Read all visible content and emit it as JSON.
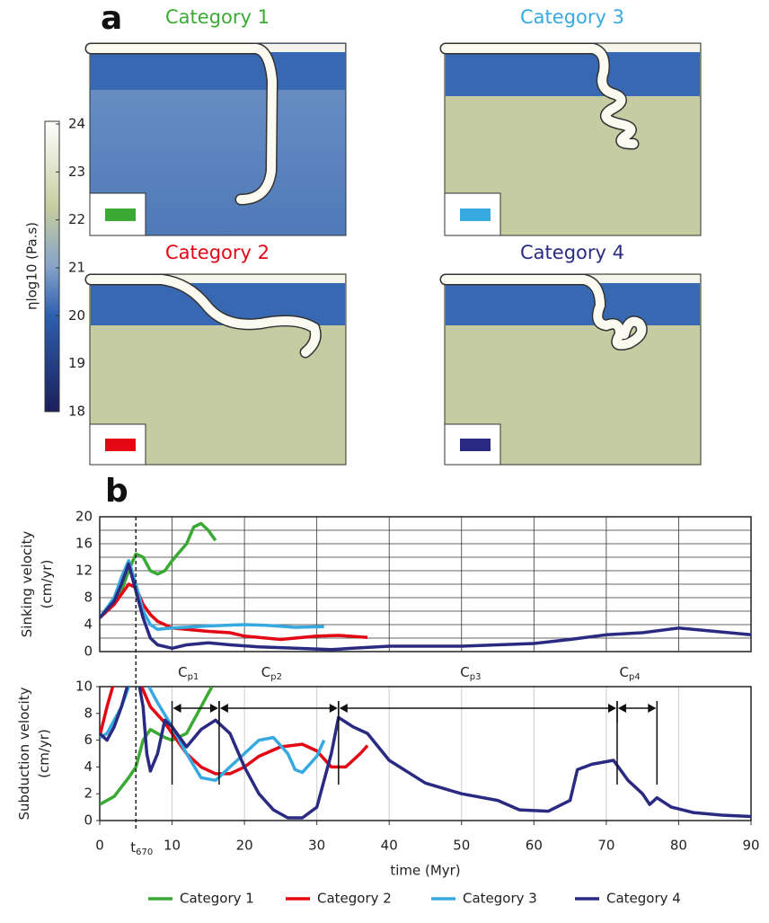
{
  "panel_a": {
    "label": "a",
    "panels": [
      {
        "title": "Category 1",
        "color": "#3aaa35"
      },
      {
        "title": "Category 3",
        "color": "#36a9e1"
      },
      {
        "title": "Category 2",
        "color": "#e30613"
      },
      {
        "title": "Category 4",
        "color": "#2b2a83"
      }
    ],
    "colorbar": {
      "label": "ηlog10 (Pa.s)",
      "lim": [
        18,
        24
      ],
      "ticks": [
        18,
        19,
        20,
        21,
        22,
        23,
        24
      ]
    }
  },
  "panel_b": {
    "label": "b"
  },
  "chart_data": [
    {
      "type": "line",
      "ylabel": [
        "Sinking velocity",
        "(cm/yr)"
      ],
      "xlim": [
        0,
        90
      ],
      "xticks": [
        0,
        10,
        20,
        30,
        40,
        50,
        60,
        70,
        80,
        90
      ],
      "ylim": [
        0,
        20
      ],
      "yticks": [
        0,
        4,
        8,
        12,
        16,
        20
      ],
      "yminor": [
        2,
        6,
        10,
        14,
        18
      ],
      "grid": true,
      "series": [
        {
          "color": "#3aaa35",
          "x": [
            0,
            3,
            4,
            5,
            6,
            7,
            8,
            9,
            10,
            12,
            13,
            14,
            15,
            16
          ],
          "values": [
            5,
            9,
            12,
            14.5,
            14,
            12,
            11.5,
            12,
            13.5,
            16,
            18.5,
            19,
            18,
            16.5
          ]
        },
        {
          "color": "#e30613",
          "x": [
            0,
            2,
            4,
            5,
            6,
            7,
            8,
            10,
            15,
            18,
            20,
            25,
            30,
            33,
            37
          ],
          "values": [
            5,
            7,
            10,
            9.5,
            7,
            5.5,
            4.5,
            3.5,
            3,
            2.8,
            2.3,
            1.8,
            2.3,
            2.4,
            2.1
          ]
        },
        {
          "color": "#36a9e1",
          "x": [
            0,
            2,
            3,
            4,
            5,
            6,
            7,
            8,
            10,
            15,
            20,
            23,
            27,
            31
          ],
          "values": [
            5,
            8,
            11,
            13.5,
            10,
            6,
            4,
            3.3,
            3.5,
            3.8,
            4,
            3.9,
            3.6,
            3.7
          ]
        },
        {
          "color": "#2b2a83",
          "x": [
            0,
            2,
            3,
            4,
            5,
            6,
            7,
            8,
            10,
            12,
            15,
            18,
            22,
            27,
            32,
            35,
            40,
            50,
            60,
            65,
            70,
            75,
            80,
            85,
            90
          ],
          "values": [
            5,
            7.5,
            10,
            13,
            9,
            5,
            2,
            1,
            0.5,
            1,
            1.3,
            1,
            0.7,
            0.5,
            0.3,
            0.5,
            0.8,
            0.8,
            1.2,
            1.8,
            2.5,
            2.8,
            3.5,
            3,
            2.5
          ]
        }
      ]
    },
    {
      "type": "line",
      "ylabel": [
        "Subduction velocity",
        "(cm/yr)"
      ],
      "xlabel": "time (Myr)",
      "xlim": [
        0,
        90
      ],
      "xticks": [
        0,
        10,
        20,
        30,
        40,
        50,
        60,
        70,
        80,
        90
      ],
      "ylim": [
        0,
        10
      ],
      "yticks": [
        0,
        2,
        4,
        6,
        8,
        10
      ],
      "grid": true,
      "annotations": {
        "t670": {
          "text": "t",
          "sub": "670",
          "x": 5
        },
        "phases": [
          {
            "text": "C",
            "sub": "p1",
            "from": 10,
            "to": 16.5
          },
          {
            "text": "C",
            "sub": "p2",
            "from": 16.5,
            "to": 33
          },
          {
            "text": "C",
            "sub": "p3",
            "from": 33,
            "to": 71.5
          },
          {
            "text": "C",
            "sub": "p4",
            "from": 71.5,
            "to": 77
          }
        ]
      },
      "series": [
        {
          "name": "Category 1",
          "color": "#3aaa35",
          "x": [
            0,
            2,
            4,
            5,
            6,
            7,
            9,
            10,
            12,
            14,
            15.5
          ],
          "values": [
            1.2,
            1.8,
            3.2,
            4,
            6,
            6.8,
            6.2,
            6,
            6.5,
            8.5,
            10
          ]
        },
        {
          "name": "Category 2",
          "color": "#e30613",
          "x": [
            0,
            1,
            1.8,
            3,
            5.8,
            7,
            9,
            10,
            12,
            14,
            16,
            18,
            20,
            22,
            25,
            28,
            30,
            32,
            34,
            36,
            37
          ],
          "values": [
            6.3,
            8.5,
            10,
            null,
            10,
            8.5,
            7.3,
            6.5,
            5,
            4,
            3.5,
            3.5,
            4,
            4.8,
            5.5,
            5.7,
            5.2,
            4,
            4,
            5,
            5.6
          ]
        },
        {
          "name": "Category 3",
          "color": "#36a9e1",
          "x": [
            0,
            1,
            2,
            3,
            4,
            5,
            6.8,
            8,
            10,
            12,
            14,
            16,
            18,
            20,
            22,
            24,
            26,
            27,
            28,
            30,
            31
          ],
          "values": [
            6.2,
            6.5,
            7.5,
            8.5,
            10,
            null,
            10,
            8.8,
            7,
            5,
            3.2,
            3,
            4,
            5,
            6,
            6.2,
            5,
            3.8,
            3.6,
            4.8,
            6
          ]
        },
        {
          "name": "Category 4",
          "color": "#2b2a83",
          "x": [
            0,
            1,
            2,
            3,
            3.8,
            4.5,
            5.5,
            6,
            6.5,
            7,
            8,
            9,
            10,
            12,
            14,
            16,
            18,
            20,
            22,
            24,
            26,
            28,
            30,
            32,
            33,
            35,
            37,
            40,
            45,
            50,
            55,
            58,
            62,
            65,
            66,
            68,
            71,
            73,
            75,
            76,
            77,
            79,
            82,
            86,
            90
          ],
          "values": [
            6.5,
            6,
            7,
            8.5,
            10,
            null,
            10,
            8.5,
            5,
            3.7,
            5,
            7.5,
            7,
            5.5,
            6.8,
            7.5,
            6.5,
            4,
            2,
            0.8,
            0.2,
            0.2,
            1,
            5,
            7.7,
            7,
            6.5,
            4.5,
            2.8,
            2,
            1.5,
            0.8,
            0.7,
            1.5,
            3.8,
            4.2,
            4.5,
            3,
            2,
            1.2,
            1.7,
            1,
            0.6,
            0.4,
            0.3
          ]
        }
      ]
    }
  ]
}
